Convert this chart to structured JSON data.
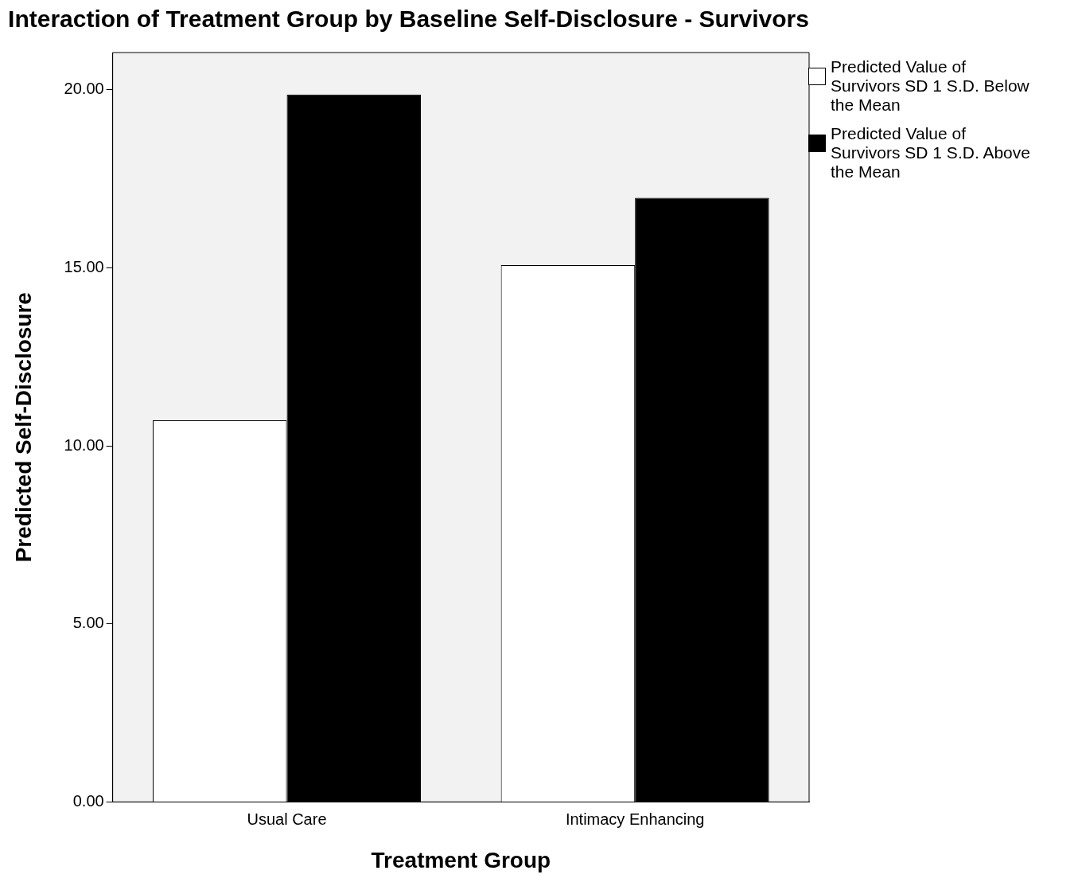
{
  "chart_data": {
    "type": "bar",
    "title": "Interaction of Treatment Group by Baseline Self-Disclosure - Survivors",
    "xlabel": "Treatment Group",
    "ylabel": "Predicted Self-Disclosure",
    "categories": [
      "Usual Care",
      "Intimacy Enhancing"
    ],
    "series": [
      {
        "name": "Predicted Value of Survivors SD 1 S.D. Below the Mean",
        "color": "#ffffff",
        "values": [
          10.72,
          15.08
        ]
      },
      {
        "name": "Predicted Value of Survivors SD 1 S.D. Above the Mean",
        "color": "#000000",
        "values": [
          19.87,
          16.97
        ]
      }
    ],
    "ylim": [
      0,
      21.05
    ],
    "yticks": [
      {
        "value": 0,
        "label": "0.00"
      },
      {
        "value": 5,
        "label": "5.00"
      },
      {
        "value": 10,
        "label": "10.00"
      },
      {
        "value": 15,
        "label": "15.00"
      },
      {
        "value": 20,
        "label": "20.00"
      }
    ],
    "legend": "right",
    "grid": false
  }
}
